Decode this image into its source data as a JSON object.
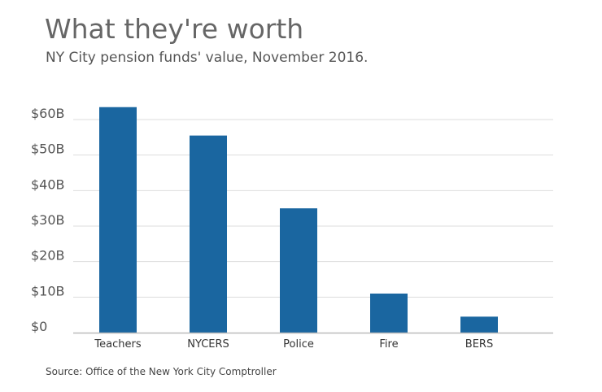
{
  "colors": {
    "bar": "#1a66a0",
    "grid": "#dddddd",
    "axis": "#bbbbbb"
  },
  "chart_data": {
    "type": "bar",
    "title": "What they're worth",
    "subtitle": "NY City pension funds' value, November 2016.",
    "source": "Source: Office of the New York City Comptroller",
    "categories": [
      "Teachers",
      "NYCERS",
      "Police",
      "Fire",
      "BERS"
    ],
    "values": [
      63.5,
      55.5,
      35,
      11,
      4.5
    ],
    "ylim": [
      0,
      60
    ],
    "yticks": [
      0,
      10,
      20,
      30,
      40,
      50,
      60
    ],
    "ytick_labels": [
      "$0",
      "$10B",
      "$20B",
      "$30B",
      "$40B",
      "$50B",
      "$60B"
    ],
    "grid": true,
    "legend": "none"
  }
}
